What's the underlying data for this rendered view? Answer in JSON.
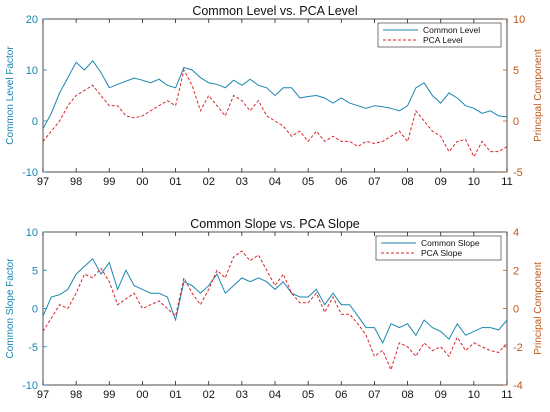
{
  "colors": {
    "common": "#1a86b0",
    "pca": "#d8262b",
    "right_axis": "#c0561c",
    "axis": "#222222"
  },
  "chart_data": [
    {
      "type": "line",
      "title": "Common Level vs. PCA Level",
      "ylabel_left": "Common Level Factor",
      "ylabel_right": "Principal Component",
      "x_ticks": [
        "97",
        "98",
        "99",
        "00",
        "01",
        "02",
        "03",
        "04",
        "05",
        "06",
        "07",
        "08",
        "09",
        "10",
        "11"
      ],
      "ylim_left": [
        -10,
        20
      ],
      "yticks_left": [
        -10,
        0,
        10,
        20
      ],
      "ylim_right": [
        -5,
        10
      ],
      "yticks_right": [
        -5,
        0,
        5,
        10
      ],
      "grid": false,
      "legend": "top-right",
      "x": [
        1997.0,
        1997.25,
        1997.5,
        1997.75,
        1998.0,
        1998.25,
        1998.5,
        1998.75,
        1999.0,
        1999.25,
        1999.5,
        1999.75,
        2000.0,
        2000.25,
        2000.5,
        2000.75,
        2001.0,
        2001.25,
        2001.5,
        2001.75,
        2002.0,
        2002.25,
        2002.5,
        2002.75,
        2003.0,
        2003.25,
        2003.5,
        2003.75,
        2004.0,
        2004.25,
        2004.5,
        2004.75,
        2005.0,
        2005.25,
        2005.5,
        2005.75,
        2006.0,
        2006.25,
        2006.5,
        2006.75,
        2007.0,
        2007.25,
        2007.5,
        2007.75,
        2008.0,
        2008.25,
        2008.5,
        2008.75,
        2009.0,
        2009.25,
        2009.5,
        2009.75,
        2010.0,
        2010.25,
        2010.5,
        2010.75,
        2011.0
      ],
      "series": [
        {
          "name": "Common Level",
          "axis": "left",
          "style": "solid",
          "values": [
            -1.5,
            1.5,
            5.5,
            8.5,
            11.5,
            10.0,
            11.8,
            9.5,
            6.5,
            7.2,
            7.8,
            8.4,
            8.0,
            7.5,
            8.2,
            7.0,
            6.5,
            10.5,
            10.0,
            8.5,
            7.5,
            7.2,
            6.5,
            8.0,
            7.0,
            8.2,
            7.0,
            6.5,
            5.0,
            6.5,
            6.5,
            4.5,
            4.8,
            5.0,
            4.5,
            3.5,
            4.5,
            3.5,
            3.0,
            2.5,
            3.0,
            2.8,
            2.5,
            2.0,
            3.0,
            6.5,
            7.5,
            5.0,
            3.5,
            5.5,
            4.5,
            3.0,
            2.5,
            1.5,
            2.0,
            1.0,
            0.8
          ]
        },
        {
          "name": "PCA Level",
          "axis": "right",
          "style": "dashed",
          "values": [
            -2.0,
            -1.0,
            0.0,
            1.5,
            2.5,
            3.0,
            3.5,
            2.5,
            1.5,
            1.5,
            0.5,
            0.3,
            0.5,
            1.0,
            1.5,
            2.0,
            1.5,
            5.0,
            3.5,
            1.0,
            2.5,
            1.5,
            0.5,
            2.5,
            2.0,
            1.0,
            2.0,
            0.5,
            0.0,
            -0.5,
            -1.5,
            -1.0,
            -2.0,
            -1.0,
            -2.0,
            -1.5,
            -2.0,
            -2.0,
            -2.5,
            -2.0,
            -2.2,
            -2.0,
            -1.5,
            -1.0,
            -2.0,
            1.0,
            0.0,
            -1.0,
            -1.5,
            -3.0,
            -2.0,
            -1.8,
            -3.5,
            -2.0,
            -3.0,
            -3.0,
            -2.5
          ]
        }
      ]
    },
    {
      "type": "line",
      "title": "Common Slope vs. PCA Slope",
      "ylabel_left": "Common Slope Factor",
      "ylabel_right": "Principal Component",
      "x_ticks": [
        "97",
        "98",
        "99",
        "00",
        "01",
        "02",
        "03",
        "04",
        "05",
        "06",
        "07",
        "08",
        "09",
        "10",
        "11"
      ],
      "ylim_left": [
        -10,
        10
      ],
      "yticks_left": [
        -10,
        -5,
        0,
        5,
        10
      ],
      "ylim_right": [
        -4,
        4
      ],
      "yticks_right": [
        -4,
        -2,
        0,
        2,
        4
      ],
      "grid": false,
      "legend": "top-right",
      "x": [
        1997.0,
        1997.25,
        1997.5,
        1997.75,
        1998.0,
        1998.25,
        1998.5,
        1998.75,
        1999.0,
        1999.25,
        1999.5,
        1999.75,
        2000.0,
        2000.25,
        2000.5,
        2000.75,
        2001.0,
        2001.25,
        2001.5,
        2001.75,
        2002.0,
        2002.25,
        2002.5,
        2002.75,
        2003.0,
        2003.25,
        2003.5,
        2003.75,
        2004.0,
        2004.25,
        2004.5,
        2004.75,
        2005.0,
        2005.25,
        2005.5,
        2005.75,
        2006.0,
        2006.25,
        2006.5,
        2006.75,
        2007.0,
        2007.25,
        2007.5,
        2007.75,
        2008.0,
        2008.25,
        2008.5,
        2008.75,
        2009.0,
        2009.25,
        2009.5,
        2009.75,
        2010.0,
        2010.25,
        2010.5,
        2010.75,
        2011.0
      ],
      "series": [
        {
          "name": "Common Slope",
          "axis": "left",
          "style": "solid",
          "values": [
            -1.0,
            1.5,
            1.8,
            2.5,
            4.5,
            5.5,
            6.5,
            4.5,
            6.0,
            2.5,
            5.0,
            3.0,
            2.5,
            2.0,
            2.0,
            1.5,
            -1.5,
            3.5,
            3.0,
            2.0,
            3.0,
            4.5,
            2.0,
            3.0,
            4.0,
            3.5,
            4.0,
            3.5,
            2.5,
            3.5,
            2.0,
            1.5,
            1.5,
            2.5,
            0.5,
            2.0,
            0.5,
            0.5,
            -1.0,
            -2.5,
            -2.5,
            -4.5,
            -2.0,
            -2.5,
            -2.0,
            -3.5,
            -1.5,
            -2.5,
            -3.0,
            -4.0,
            -2.0,
            -3.5,
            -3.0,
            -2.5,
            -2.5,
            -2.8,
            -1.5
          ]
        },
        {
          "name": "PCA Slope",
          "axis": "right",
          "style": "dashed",
          "values": [
            -1.2,
            -0.5,
            0.2,
            0.0,
            0.8,
            1.8,
            1.6,
            2.1,
            1.4,
            0.2,
            0.5,
            0.8,
            0.0,
            0.2,
            0.4,
            0.0,
            -0.4,
            1.6,
            0.8,
            0.2,
            1.0,
            2.0,
            1.6,
            2.7,
            3.0,
            2.5,
            2.8,
            2.0,
            1.2,
            1.8,
            0.8,
            0.3,
            0.3,
            0.8,
            -0.2,
            0.6,
            -0.3,
            -0.3,
            -0.8,
            -1.4,
            -2.5,
            -2.2,
            -3.2,
            -1.8,
            -2.0,
            -2.5,
            -1.8,
            -2.2,
            -2.0,
            -2.5,
            -1.5,
            -2.2,
            -1.8,
            -2.0,
            -2.2,
            -2.3,
            -1.8
          ]
        }
      ]
    }
  ]
}
